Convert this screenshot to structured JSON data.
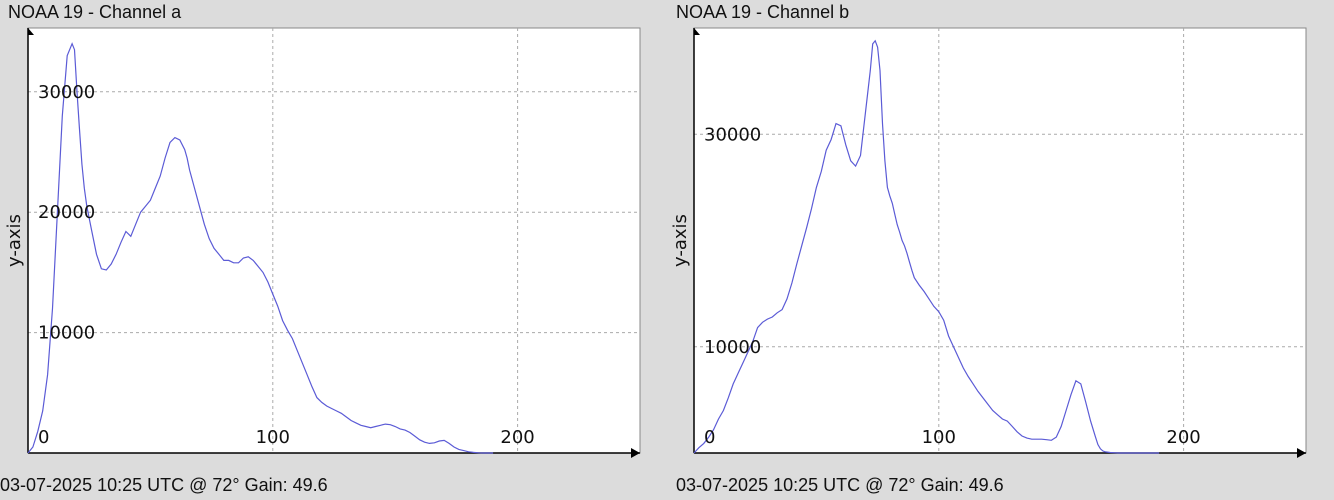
{
  "panels": [
    {
      "title": "NOAA 19 - Channel a",
      "footer": "03-07-2025 10:25 UTC @ 72° Gain: 49.6"
    },
    {
      "title": "NOAA 19 - Channel b",
      "footer": "03-07-2025 10:25 UTC @ 72° Gain: 49.6"
    }
  ],
  "chart_data": [
    {
      "type": "line",
      "title": "NOAA 19 - Channel a",
      "xlabel": "",
      "ylabel": "y-axis",
      "xlim": [
        0,
        250
      ],
      "ylim": [
        0,
        35300
      ],
      "x_ticks": [
        0,
        100,
        200
      ],
      "y_ticks": [
        10000,
        20000,
        30000
      ],
      "grid": true,
      "line_color": "#5b5bd6",
      "series": [
        {
          "x": [
            0,
            2,
            4,
            6,
            8,
            10,
            12,
            14,
            16,
            18,
            19,
            20,
            21,
            22,
            23,
            24,
            26,
            28,
            30,
            32,
            34,
            36,
            38,
            40,
            42,
            44,
            46,
            48,
            50,
            52,
            54,
            56,
            58,
            60,
            62,
            64,
            65,
            66,
            68,
            70,
            72,
            74,
            76,
            78,
            80,
            82,
            84,
            86,
            88,
            90,
            92,
            94,
            96,
            98,
            100,
            102,
            104,
            106,
            108,
            110,
            112,
            114,
            116,
            118,
            120,
            122,
            124,
            126,
            128,
            130,
            132,
            134,
            136,
            138,
            140,
            142,
            144,
            146,
            148,
            150,
            152,
            154,
            156,
            158,
            160,
            162,
            164,
            166,
            168,
            170,
            172,
            174,
            176,
            178,
            180,
            182,
            184,
            186,
            188,
            190
          ],
          "y": [
            0,
            500,
            1800,
            3500,
            6500,
            12000,
            20000,
            28000,
            33000,
            34000,
            33500,
            30000,
            27000,
            24000,
            22000,
            20500,
            18500,
            16500,
            15300,
            15200,
            15700,
            16500,
            17500,
            18400,
            18000,
            19000,
            20000,
            20500,
            21000,
            22000,
            23000,
            24500,
            25800,
            26200,
            26000,
            25200,
            24500,
            23500,
            22000,
            20500,
            19000,
            17800,
            17000,
            16500,
            16000,
            16000,
            15800,
            15800,
            16200,
            16300,
            16000,
            15500,
            15000,
            14200,
            13200,
            12200,
            11000,
            10200,
            9500,
            8500,
            7500,
            6500,
            5500,
            4600,
            4200,
            3900,
            3700,
            3500,
            3300,
            3000,
            2700,
            2500,
            2300,
            2200,
            2100,
            2200,
            2300,
            2400,
            2350,
            2200,
            2000,
            1900,
            1700,
            1400,
            1100,
            900,
            800,
            850,
            1000,
            1050,
            800,
            500,
            300,
            200,
            100,
            50,
            20,
            0,
            0,
            0
          ]
        }
      ]
    },
    {
      "type": "line",
      "title": "NOAA 19 - Channel b",
      "xlabel": "",
      "ylabel": "y-axis",
      "xlim": [
        0,
        250
      ],
      "ylim": [
        0,
        40000
      ],
      "x_ticks": [
        0,
        100,
        200
      ],
      "y_ticks": [
        10000,
        30000
      ],
      "grid": true,
      "line_color": "#5b5bd6",
      "series": [
        {
          "x": [
            0,
            2,
            4,
            6,
            8,
            10,
            12,
            14,
            16,
            18,
            20,
            22,
            24,
            26,
            28,
            30,
            32,
            34,
            36,
            38,
            40,
            42,
            44,
            46,
            48,
            50,
            52,
            54,
            56,
            58,
            60,
            62,
            64,
            66,
            68,
            70,
            72,
            73,
            74,
            75,
            76,
            77,
            78,
            79,
            80,
            81,
            82,
            83,
            84,
            85,
            86,
            87,
            88,
            89,
            90,
            92,
            94,
            96,
            98,
            100,
            102,
            104,
            106,
            108,
            110,
            112,
            114,
            116,
            118,
            120,
            122,
            124,
            126,
            128,
            130,
            132,
            134,
            136,
            138,
            140,
            142,
            144,
            146,
            148,
            150,
            152,
            154,
            156,
            158,
            160,
            162,
            164,
            165,
            166,
            167,
            168,
            170,
            172,
            174,
            176,
            178,
            180,
            182,
            184,
            186,
            188,
            190
          ],
          "y": [
            0,
            500,
            900,
            1500,
            2200,
            3200,
            4000,
            5200,
            6500,
            7500,
            8500,
            9500,
            10500,
            11800,
            12300,
            12600,
            12800,
            13200,
            13500,
            14500,
            16000,
            17800,
            19500,
            21200,
            23000,
            25000,
            26500,
            28500,
            29500,
            31000,
            30800,
            29000,
            27500,
            27000,
            28000,
            32000,
            36000,
            38500,
            38800,
            38200,
            36000,
            31000,
            27500,
            25000,
            24200,
            23500,
            22500,
            21500,
            20800,
            20000,
            19500,
            18800,
            18000,
            17200,
            16500,
            15800,
            15200,
            14500,
            13800,
            13300,
            12500,
            11000,
            10000,
            9000,
            8000,
            7200,
            6500,
            5800,
            5200,
            4600,
            4000,
            3600,
            3200,
            3000,
            2500,
            2000,
            1600,
            1400,
            1300,
            1300,
            1300,
            1250,
            1200,
            1500,
            2500,
            4000,
            5500,
            6800,
            6500,
            4800,
            3000,
            1500,
            800,
            400,
            200,
            100,
            50,
            20,
            0,
            0,
            0,
            0,
            0,
            0,
            0,
            0,
            0
          ]
        }
      ]
    }
  ]
}
